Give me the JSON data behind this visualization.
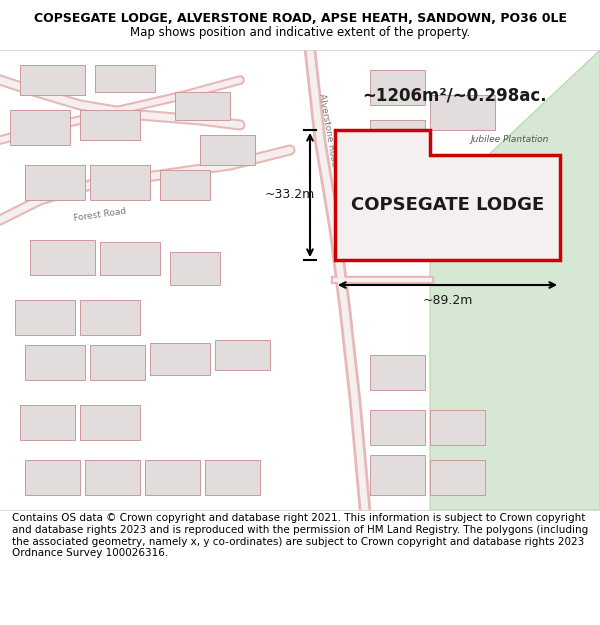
{
  "title_line1": "COPSEGATE LODGE, ALVERSTONE ROAD, APSE HEATH, SANDOWN, PO36 0LE",
  "title_line2": "Map shows position and indicative extent of the property.",
  "label_name": "COPSEGATE LODGE",
  "area_text": "~1206m²/~0.298ac.",
  "dim_width": "~89.2m",
  "dim_height": "~33.2m",
  "footer_text": "Contains OS data © Crown copyright and database right 2021. This information is subject to Crown copyright and database rights 2023 and is reproduced with the permission of HM Land Registry. The polygons (including the associated geometry, namely x, y co-ordinates) are subject to Crown copyright and database rights 2023 Ordnance Survey 100026316.",
  "map_bg": "#f5f0f0",
  "green_area_color": "#d6e8d4",
  "green_border_color": "#b8d4b0",
  "plot_outline_color": "#cc0000",
  "road_color": "#e8b8b8",
  "road_center_color": "#f5efef",
  "building_fill": "#e2dcdc",
  "building_outline": "#cc9999",
  "title_fontsize": 9,
  "subtitle_fontsize": 8.5,
  "footer_fontsize": 7.5
}
